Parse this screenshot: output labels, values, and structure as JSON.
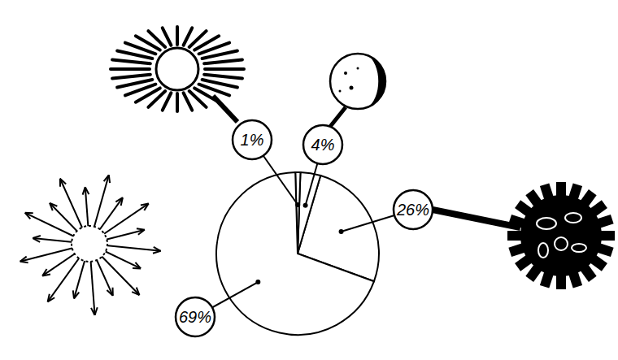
{
  "chart_data": {
    "type": "pie",
    "values": [
      26,
      4,
      1,
      69
    ],
    "value_labels": [
      "26%",
      "4%",
      "1%",
      "69%"
    ],
    "colors": [
      "#ffffff",
      "#ffffff",
      "#ffffff",
      "#ffffff"
    ],
    "data_labels": true
  }
}
